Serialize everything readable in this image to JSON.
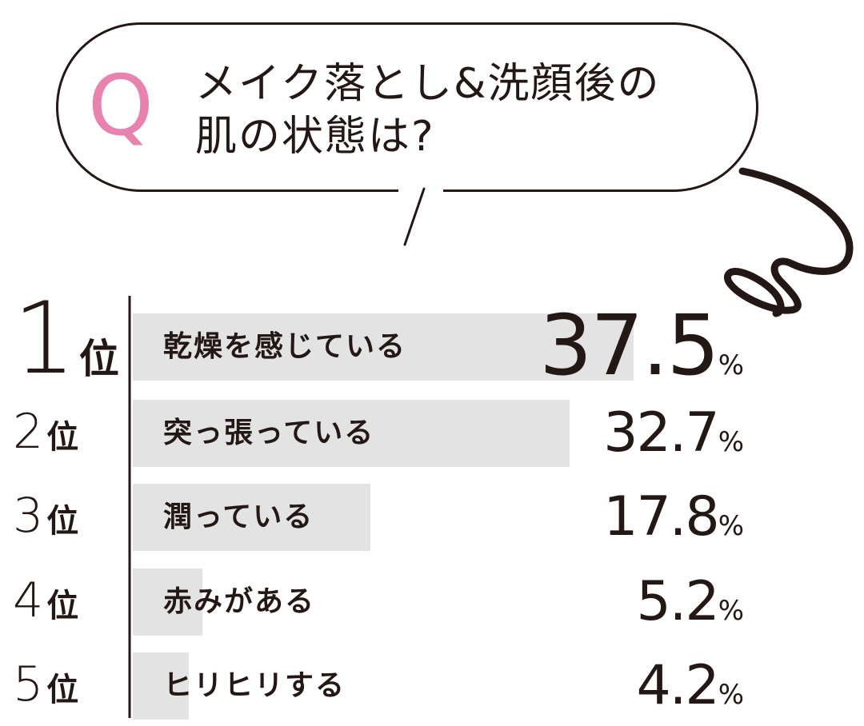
{
  "question": {
    "marker": "Q",
    "lines": [
      "メイク落とし&洗顔後の",
      "肌の状態は?"
    ]
  },
  "colors": {
    "accent": "#e882ae",
    "ink": "#231815",
    "bar": "#e3e3e3"
  },
  "chart_data": {
    "type": "bar",
    "orientation": "horizontal",
    "categories": [
      "乾燥を感じている",
      "突っ張っている",
      "潤っている",
      "赤みがある",
      "ヒリヒリする"
    ],
    "ranks": [
      {
        "number": "1",
        "suffix": "位"
      },
      {
        "number": "2",
        "suffix": "位"
      },
      {
        "number": "3",
        "suffix": "位"
      },
      {
        "number": "4",
        "suffix": "位"
      },
      {
        "number": "5",
        "suffix": "位"
      }
    ],
    "values": [
      37.5,
      32.7,
      17.8,
      5.2,
      4.2
    ],
    "value_labels": [
      "37.5",
      "32.7",
      "17.8",
      "5.2",
      "4.2"
    ],
    "unit": "%",
    "xlim": [
      0,
      37.5
    ]
  }
}
